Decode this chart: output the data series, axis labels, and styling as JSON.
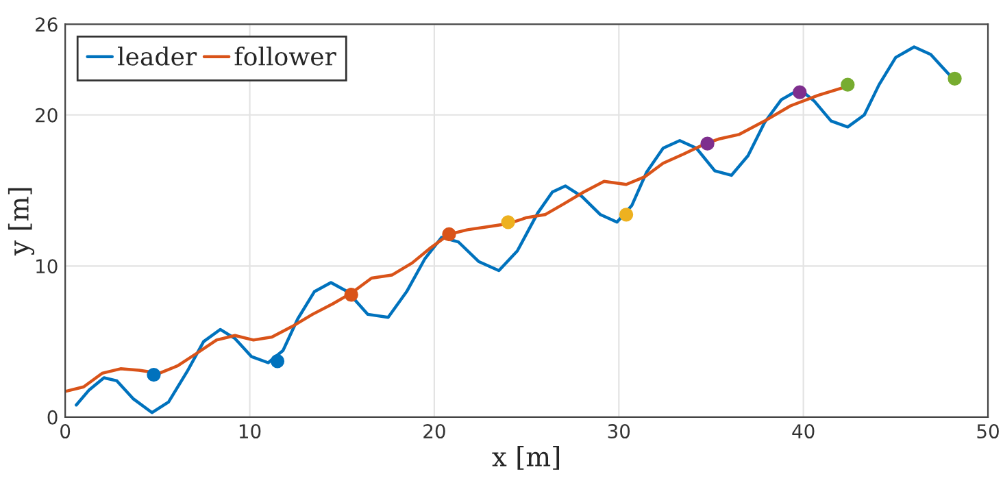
{
  "chart_data": {
    "type": "line",
    "xlabel": "x [m]",
    "ylabel": "y [m]",
    "xlim": [
      0,
      50
    ],
    "ylim": [
      0,
      26
    ],
    "xticks": [
      0,
      10,
      20,
      30,
      40,
      50
    ],
    "yticks": [
      0,
      10,
      20,
      26
    ],
    "grid": true,
    "legend": "top left",
    "line_style": "solid",
    "series": [
      {
        "name": "leader",
        "color": "#0072bd",
        "marker": "none",
        "x": [
          0.6,
          1.3,
          2.1,
          2.8,
          3.7,
          4.7,
          5.6,
          6.6,
          7.5,
          8.4,
          9.2,
          10.1,
          11.0,
          11.8,
          12.6,
          13.5,
          14.4,
          15.3,
          16.4,
          17.5,
          18.5,
          19.5,
          20.4,
          21.3,
          22.4,
          23.5,
          24.5,
          25.6,
          26.4,
          27.1,
          28.0,
          29.0,
          29.9,
          30.7,
          31.5,
          32.4,
          33.3,
          34.2,
          35.2,
          36.1,
          37.0,
          37.9,
          38.8,
          39.8,
          40.6,
          41.5,
          42.4,
          43.3,
          44.1,
          45.0,
          46.0,
          46.9,
          47.5,
          48.1
        ],
        "values": [
          0.8,
          1.8,
          2.6,
          2.4,
          1.2,
          0.3,
          1.0,
          3.0,
          5.0,
          5.8,
          5.2,
          4.0,
          3.6,
          4.4,
          6.5,
          8.3,
          8.9,
          8.3,
          6.8,
          6.6,
          8.3,
          10.5,
          11.9,
          11.6,
          10.3,
          9.7,
          11.0,
          13.5,
          14.9,
          15.3,
          14.6,
          13.4,
          12.9,
          14.0,
          16.2,
          17.8,
          18.3,
          17.8,
          16.3,
          16.0,
          17.3,
          19.5,
          21.0,
          21.7,
          20.9,
          19.6,
          19.2,
          20.0,
          22.0,
          23.8,
          24.5,
          24.0,
          23.2,
          22.4
        ]
      },
      {
        "name": "follower",
        "color": "#d95319",
        "marker": "none",
        "x": [
          0.0,
          1.0,
          2.0,
          3.0,
          4.0,
          5.1,
          6.1,
          7.1,
          8.2,
          9.2,
          10.2,
          11.2,
          12.3,
          13.4,
          14.5,
          15.5,
          16.6,
          17.7,
          18.8,
          19.8,
          20.8,
          21.8,
          22.9,
          24.0,
          25.0,
          26.0,
          27.0,
          28.1,
          29.2,
          30.4,
          31.4,
          32.4,
          33.5,
          34.7,
          35.4,
          36.5,
          37.9,
          39.3,
          40.8,
          42.4
        ],
        "values": [
          1.7,
          2.0,
          2.9,
          3.2,
          3.1,
          2.9,
          3.4,
          4.2,
          5.1,
          5.4,
          5.1,
          5.3,
          6.0,
          6.8,
          7.5,
          8.2,
          9.2,
          9.4,
          10.2,
          11.2,
          12.1,
          12.4,
          12.6,
          12.8,
          13.2,
          13.4,
          14.1,
          14.9,
          15.6,
          15.4,
          15.9,
          16.8,
          17.4,
          18.1,
          18.4,
          18.7,
          19.6,
          20.6,
          21.3,
          21.9
        ]
      },
      {
        "type": "scatter",
        "color": "#0072bd",
        "marker": "circle",
        "x": [
          4.8,
          11.5
        ],
        "values": [
          2.8,
          3.7
        ]
      },
      {
        "type": "scatter",
        "color": "#d95319",
        "marker": "circle",
        "x": [
          15.5,
          20.8
        ],
        "values": [
          8.1,
          12.1
        ]
      },
      {
        "type": "scatter",
        "color": "#edb120",
        "marker": "circle",
        "x": [
          24.0,
          30.4
        ],
        "values": [
          12.9,
          13.4
        ]
      },
      {
        "type": "scatter",
        "color": "#7e2f8e",
        "marker": "circle",
        "x": [
          34.8,
          39.8
        ],
        "values": [
          18.1,
          21.5
        ]
      },
      {
        "type": "scatter",
        "color": "#77ac30",
        "marker": "circle",
        "x": [
          42.4,
          48.2
        ],
        "values": [
          22.0,
          22.4
        ]
      }
    ]
  }
}
